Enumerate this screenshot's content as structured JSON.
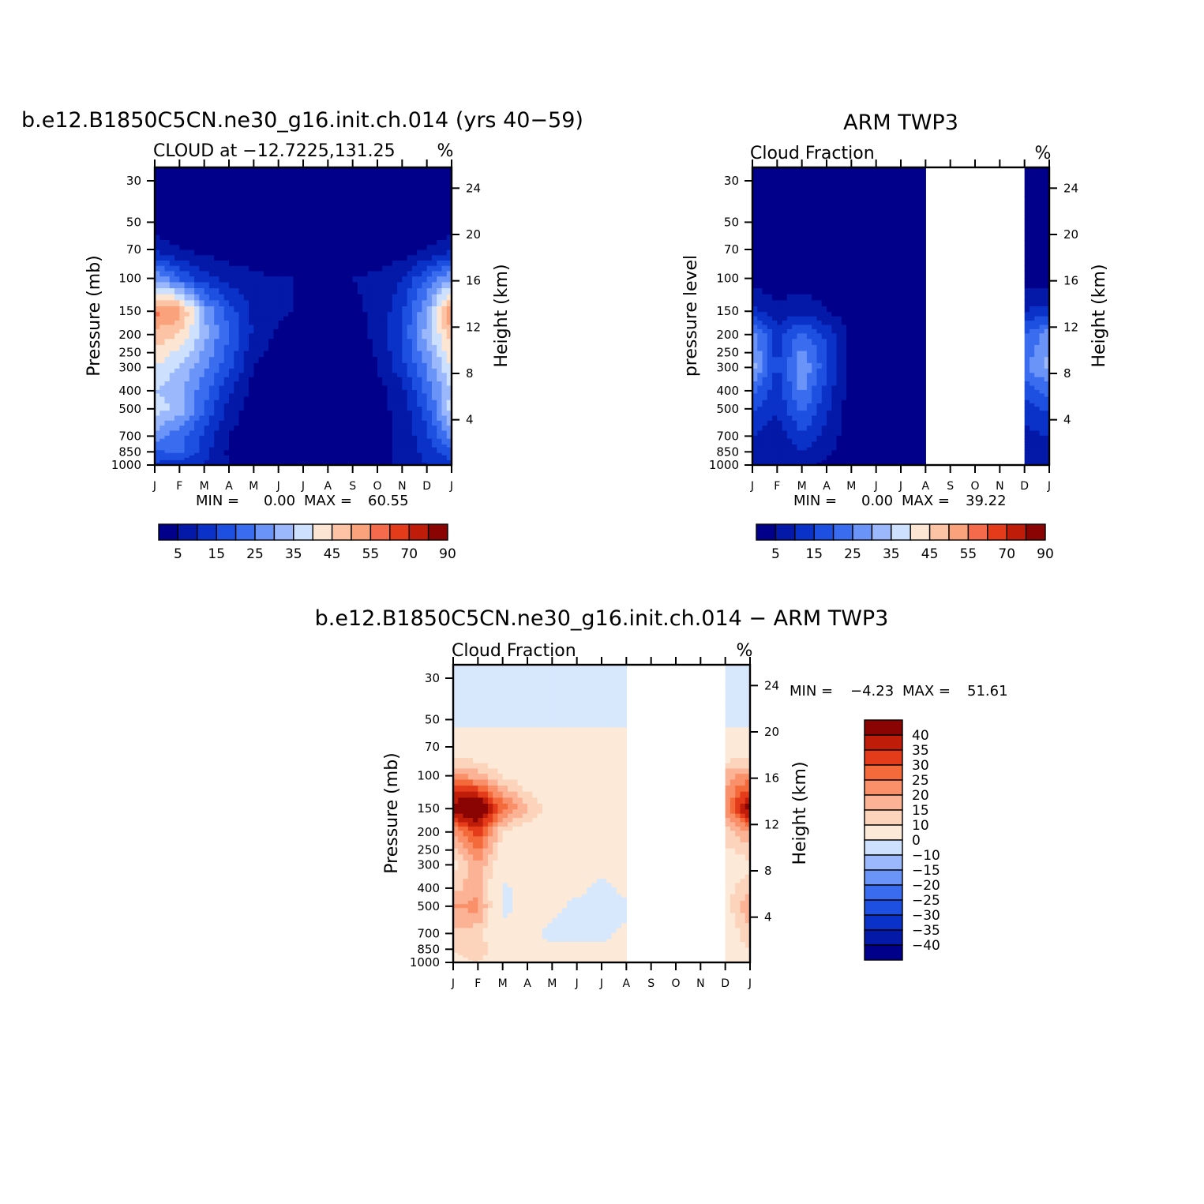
{
  "months": [
    "J",
    "F",
    "M",
    "A",
    "M",
    "J",
    "J",
    "A",
    "S",
    "O",
    "N",
    "D",
    "J"
  ],
  "pressure_ticks": [
    "30",
    "50",
    "70",
    "100",
    "150",
    "200",
    "250",
    "300",
    "400",
    "500",
    "700",
    "850",
    "1000"
  ],
  "height_ticks": [
    "24",
    "20",
    "16",
    "12",
    "8",
    "4"
  ],
  "palette_main": [
    "#00008a",
    "#0519a8",
    "#0a32c8",
    "#1d4fe0",
    "#3a6cf0",
    "#6a94f8",
    "#9ab8fb",
    "#cde0fd",
    "#fde5d3",
    "#fcc4a5",
    "#f9a27c",
    "#f46a4a",
    "#e43b1b",
    "#bf1d09",
    "#8a0404"
  ],
  "palette_diff": [
    "#00008a",
    "#0519a8",
    "#0a32c8",
    "#1d4fe0",
    "#3a6cf0",
    "#6a94f8",
    "#9ab8fb",
    "#cde0fd",
    "#d7e8fd",
    "#fde9d8",
    "#fcd3bb",
    "#fbb295",
    "#f9906a",
    "#f46a3a",
    "#e43b1b",
    "#bf1d09",
    "#8a0404"
  ],
  "panel1": {
    "title": "b.e12.B1850C5CN.ne30_g16.init.ch.014 (yrs 40−59)",
    "subtitle": "CLOUD at −12.7225,131.25",
    "units": "%",
    "ylabel_left": "Pressure (mb)",
    "ylabel_right": "Height (km)",
    "min_text": "MIN =",
    "min_val": "0.00",
    "max_text": "MAX =",
    "max_val": "60.55",
    "colorbar_labels": [
      "5",
      "15",
      "25",
      "35",
      "45",
      "55",
      "70",
      "90"
    ]
  },
  "panel2": {
    "title": "ARM TWP3",
    "subtitle": "Cloud Fraction",
    "units": "%",
    "ylabel_left": "pressure level",
    "ylabel_right": "Height (km)",
    "min_text": "MIN =",
    "min_val": "0.00",
    "max_text": "MAX =",
    "max_val": "39.22",
    "colorbar_labels": [
      "5",
      "15",
      "25",
      "35",
      "45",
      "55",
      "70",
      "90"
    ]
  },
  "panel3": {
    "title": "b.e12.B1850C5CN.ne30_g16.init.ch.014 − ARM TWP3",
    "subtitle": "Cloud Fraction",
    "units": "%",
    "ylabel_left": "Pressure (mb)",
    "ylabel_right": "Height (km)",
    "min_text": "MIN =",
    "min_val": "−4.23",
    "max_text": "MAX =",
    "max_val": "51.61",
    "colorbar_labels": [
      "40",
      "35",
      "30",
      "25",
      "20",
      "15",
      "10",
      "0",
      "−10",
      "−15",
      "−20",
      "−25",
      "−30",
      "−35",
      "−40"
    ]
  },
  "chart_data": [
    {
      "type": "heatmap",
      "title": "b.e12.B1850C5CN.ne30_g16.init.ch.014 (yrs 40−59)",
      "subtitle": "CLOUD at −12.7225,131.25",
      "units": "%",
      "xlabel": "",
      "ylabel": "Pressure (mb)",
      "ylabel_right": "Height (km)",
      "x": [
        "J",
        "F",
        "M",
        "A",
        "M",
        "J",
        "J",
        "A",
        "S",
        "O",
        "N",
        "D",
        "J"
      ],
      "y": [
        30,
        50,
        70,
        100,
        150,
        200,
        300,
        400,
        500,
        700,
        850,
        1000
      ],
      "y_scale": "log",
      "y_inverted": true,
      "levels": [
        5,
        10,
        15,
        20,
        25,
        30,
        35,
        40,
        45,
        50,
        55,
        60,
        70,
        80,
        90
      ],
      "z": [
        [
          1,
          1,
          1,
          1,
          1,
          1,
          1,
          1,
          1,
          1,
          1,
          1,
          1
        ],
        [
          2,
          2,
          1,
          1,
          1,
          1,
          1,
          1,
          1,
          1,
          1,
          2,
          2
        ],
        [
          8,
          5,
          3,
          2,
          2,
          2,
          2,
          2,
          2,
          2,
          2,
          5,
          8
        ],
        [
          30,
          20,
          12,
          8,
          6,
          5,
          5,
          5,
          5,
          6,
          10,
          20,
          30
        ],
        [
          57,
          53,
          30,
          18,
          9,
          6,
          4,
          4,
          4,
          6,
          14,
          30,
          57
        ],
        [
          48,
          45,
          32,
          20,
          9,
          4,
          2,
          2,
          3,
          6,
          16,
          32,
          48
        ],
        [
          40,
          34,
          26,
          16,
          5,
          2,
          1,
          1,
          2,
          5,
          13,
          26,
          40
        ],
        [
          35,
          32,
          22,
          11,
          3,
          1,
          1,
          1,
          1,
          3,
          8,
          22,
          35
        ],
        [
          38,
          33,
          20,
          8,
          2,
          1,
          1,
          1,
          1,
          3,
          7,
          18,
          38
        ],
        [
          28,
          22,
          14,
          5,
          2,
          1,
          1,
          1,
          1,
          3,
          6,
          14,
          28
        ],
        [
          18,
          22,
          12,
          4,
          2,
          1,
          1,
          1,
          1,
          3,
          6,
          12,
          18
        ],
        [
          14,
          12,
          10,
          5,
          3,
          2,
          1,
          1,
          2,
          3,
          6,
          10,
          14
        ]
      ],
      "zmin": 0.0,
      "zmax": 60.55
    },
    {
      "type": "heatmap",
      "title": "ARM TWP3",
      "subtitle": "Cloud Fraction",
      "units": "%",
      "xlabel": "",
      "ylabel": "pressure level",
      "ylabel_right": "Height (km)",
      "x": [
        "J",
        "F",
        "M",
        "A",
        "M",
        "J",
        "J",
        "A",
        "S",
        "O",
        "N",
        "D",
        "J"
      ],
      "y": [
        30,
        50,
        70,
        100,
        150,
        200,
        300,
        400,
        500,
        700,
        850,
        1000
      ],
      "y_scale": "log",
      "y_inverted": true,
      "missing_months": [
        "S",
        "O",
        "N"
      ],
      "levels": [
        5,
        10,
        15,
        20,
        25,
        30,
        35,
        40,
        45,
        50,
        55,
        60,
        70,
        80,
        90
      ],
      "z": [
        [
          1,
          1,
          1,
          1,
          1,
          1,
          1,
          1,
          null,
          null,
          null,
          1,
          1
        ],
        [
          1,
          1,
          1,
          1,
          1,
          1,
          1,
          1,
          null,
          null,
          null,
          1,
          1
        ],
        [
          1,
          1,
          1,
          1,
          1,
          1,
          1,
          1,
          null,
          null,
          null,
          1,
          1
        ],
        [
          2,
          2,
          3,
          2,
          1,
          1,
          1,
          1,
          null,
          null,
          null,
          2,
          2
        ],
        [
          12,
          6,
          8,
          5,
          2,
          1,
          1,
          1,
          null,
          null,
          null,
          10,
          12
        ],
        [
          28,
          12,
          22,
          14,
          3,
          1,
          1,
          1,
          null,
          null,
          null,
          20,
          28
        ],
        [
          32,
          14,
          30,
          16,
          3,
          1,
          1,
          1,
          null,
          null,
          null,
          24,
          32
        ],
        [
          22,
          12,
          26,
          13,
          2,
          1,
          1,
          1,
          null,
          null,
          null,
          17,
          22
        ],
        [
          16,
          10,
          22,
          11,
          2,
          1,
          1,
          1,
          null,
          null,
          null,
          13,
          16
        ],
        [
          10,
          7,
          14,
          8,
          2,
          1,
          1,
          1,
          null,
          null,
          null,
          8,
          10
        ],
        [
          9,
          6,
          10,
          6,
          2,
          1,
          1,
          1,
          null,
          null,
          null,
          7,
          9
        ],
        [
          6,
          5,
          6,
          4,
          2,
          1,
          1,
          1,
          null,
          null,
          null,
          5,
          6
        ]
      ],
      "zmin": 0.0,
      "zmax": 39.22
    },
    {
      "type": "heatmap",
      "title": "b.e12.B1850C5CN.ne30_g16.init.ch.014 − ARM TWP3",
      "subtitle": "Cloud Fraction",
      "units": "%",
      "xlabel": "",
      "ylabel": "Pressure (mb)",
      "ylabel_right": "Height (km)",
      "x": [
        "J",
        "F",
        "M",
        "A",
        "M",
        "J",
        "J",
        "A",
        "S",
        "O",
        "N",
        "D",
        "J"
      ],
      "y": [
        30,
        50,
        70,
        100,
        150,
        200,
        300,
        400,
        500,
        700,
        850,
        1000
      ],
      "y_scale": "log",
      "y_inverted": true,
      "missing_months": [
        "S",
        "O",
        "N"
      ],
      "levels": [
        -40,
        -35,
        -30,
        -25,
        -20,
        -15,
        -10,
        0,
        10,
        15,
        20,
        25,
        30,
        35,
        40
      ],
      "z": [
        [
          -1,
          -1,
          -1,
          -1,
          -1,
          -1,
          -1,
          -1,
          null,
          null,
          null,
          -1,
          -1
        ],
        [
          -1,
          -1,
          -1,
          -1,
          -1,
          -1,
          -1,
          -1,
          null,
          null,
          null,
          -1,
          -1
        ],
        [
          2,
          2,
          2,
          2,
          2,
          2,
          2,
          2,
          null,
          null,
          null,
          2,
          2
        ],
        [
          22,
          18,
          9,
          5,
          4,
          3,
          3,
          3,
          null,
          null,
          null,
          18,
          22
        ],
        [
          45,
          50,
          28,
          15,
          8,
          4,
          3,
          3,
          null,
          null,
          null,
          22,
          45
        ],
        [
          20,
          33,
          10,
          6,
          4,
          3,
          2,
          2,
          null,
          null,
          null,
          12,
          20
        ],
        [
          8,
          20,
          4,
          2,
          2,
          1,
          1,
          1,
          null,
          null,
          null,
          6,
          8
        ],
        [
          13,
          18,
          -1,
          1,
          1,
          1,
          -1,
          1,
          null,
          null,
          null,
          8,
          13
        ],
        [
          20,
          22,
          -1,
          1,
          1,
          -1,
          -1,
          -1,
          null,
          null,
          null,
          7,
          20
        ],
        [
          14,
          12,
          1,
          1,
          -1,
          -1,
          -1,
          1,
          null,
          null,
          null,
          5,
          14
        ],
        [
          10,
          15,
          2,
          1,
          1,
          1,
          1,
          1,
          null,
          null,
          null,
          5,
          10
        ],
        [
          8,
          10,
          4,
          1,
          1,
          1,
          1,
          1,
          null,
          null,
          null,
          4,
          8
        ]
      ],
      "zmin": -4.23,
      "zmax": 51.61
    }
  ]
}
